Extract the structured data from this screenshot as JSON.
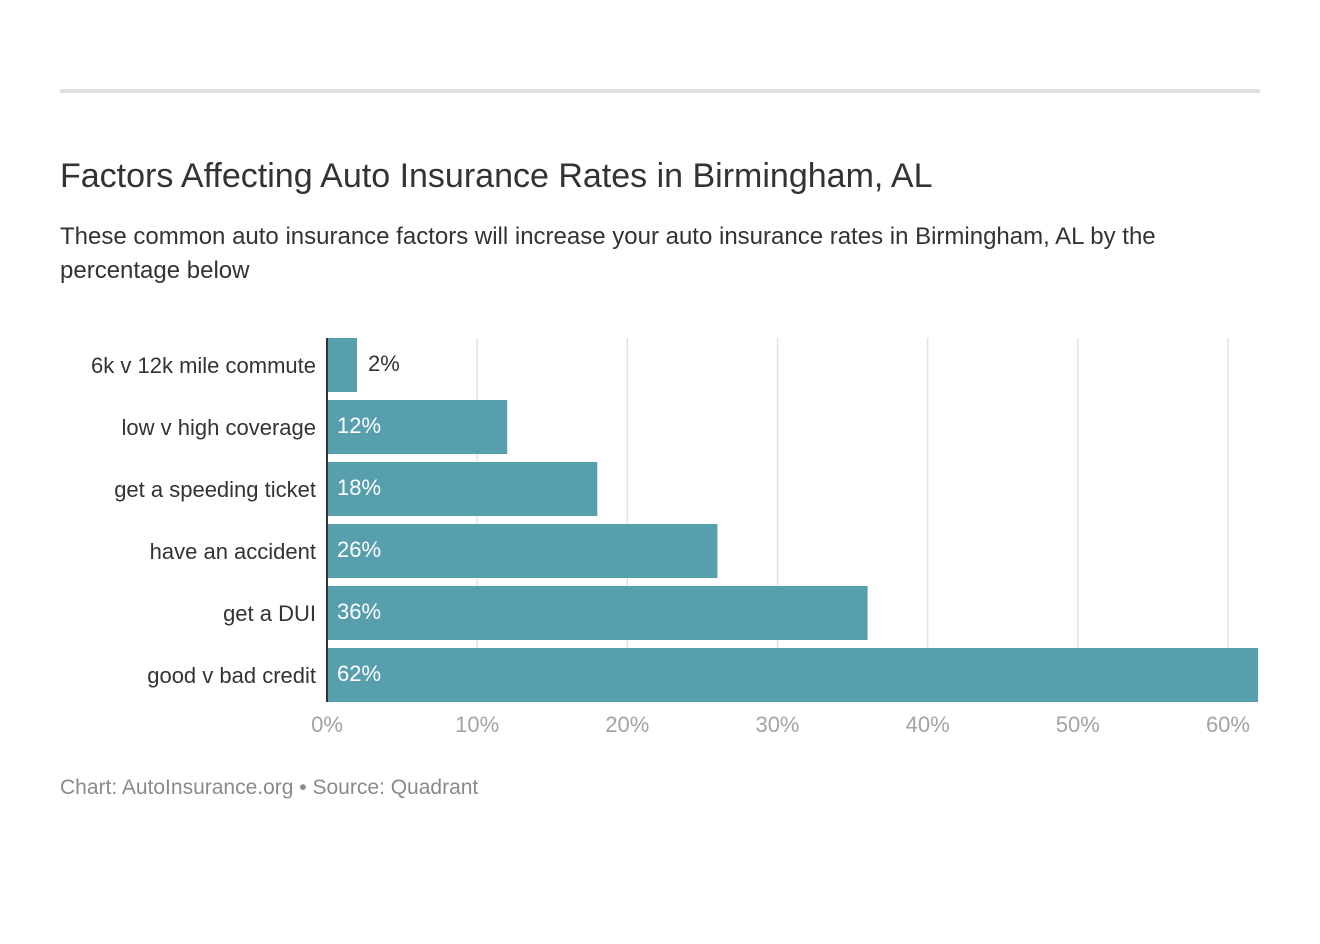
{
  "header": {
    "title": "Factors Affecting Auto Insurance Rates in Birmingham, AL",
    "subtitle": "These common auto insurance factors will increase your auto insurance rates in Birmingham, AL by the percentage below"
  },
  "footer": {
    "credit": "Chart: AutoInsurance.org • Source: Quadrant"
  },
  "colors": {
    "bar": "#589fae",
    "grid": "#e3e3e3",
    "axis": "#333333",
    "tick_label": "#a3a3a3",
    "label_inside": "#ffffff",
    "label_outside": "#333333"
  },
  "chart_data": {
    "type": "bar",
    "orientation": "horizontal",
    "categories": [
      "6k v 12k mile commute",
      "low v high coverage",
      "get a speeding ticket",
      "have an accident",
      "get a DUI",
      "good v bad credit"
    ],
    "values": [
      2,
      12,
      18,
      26,
      36,
      62
    ],
    "value_labels": [
      "2%",
      "12%",
      "18%",
      "26%",
      "36%",
      "62%"
    ],
    "xlim": [
      0,
      62
    ],
    "xticks": [
      0,
      10,
      20,
      30,
      40,
      50,
      60
    ],
    "xtick_labels": [
      "0%",
      "10%",
      "20%",
      "30%",
      "40%",
      "50%",
      "60%"
    ],
    "grid": "vertical",
    "legend": "none"
  }
}
